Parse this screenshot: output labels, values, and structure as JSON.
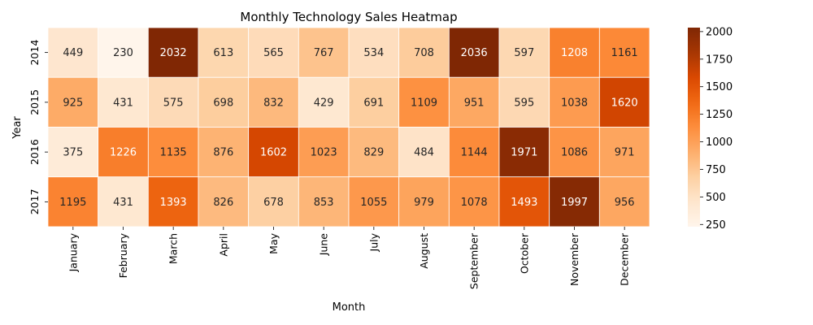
{
  "chart_data": {
    "type": "heatmap",
    "title": "Monthly Technology Sales Heatmap",
    "xlabel": "Month",
    "ylabel": "Year",
    "x_categories": [
      "January",
      "February",
      "March",
      "April",
      "May",
      "June",
      "July",
      "August",
      "September",
      "October",
      "November",
      "December"
    ],
    "y_categories": [
      "2014",
      "2015",
      "2016",
      "2017"
    ],
    "values": [
      [
        449,
        230,
        2032,
        613,
        565,
        767,
        534,
        708,
        2036,
        597,
        1208,
        1161
      ],
      [
        925,
        431,
        575,
        698,
        832,
        429,
        691,
        1109,
        951,
        595,
        1038,
        1620
      ],
      [
        375,
        1226,
        1135,
        876,
        1602,
        1023,
        829,
        484,
        1144,
        1971,
        1086,
        971
      ],
      [
        1195,
        431,
        1393,
        826,
        678,
        853,
        1055,
        979,
        1078,
        1493,
        1997,
        956
      ]
    ],
    "colorbar": {
      "min": 230,
      "max": 2036,
      "ticks": [
        250,
        500,
        750,
        1000,
        1250,
        1500,
        1750,
        2000
      ],
      "colormap": "Oranges"
    },
    "annotations": true
  }
}
